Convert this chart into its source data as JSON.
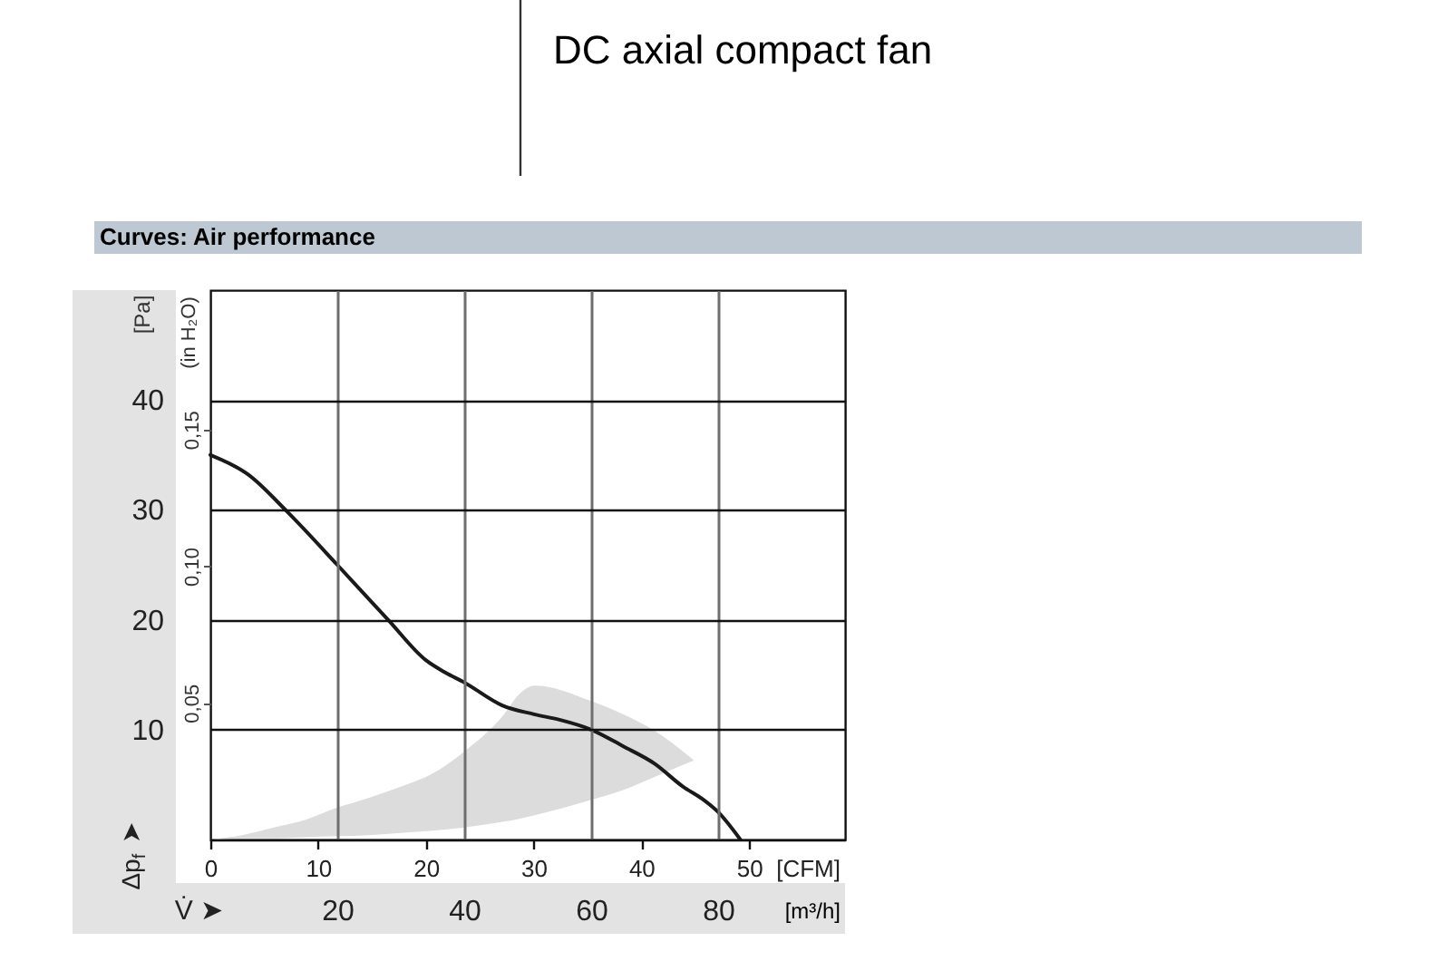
{
  "chart_data": {
    "type": "line",
    "title": "DC axial compact fan",
    "subtitle": "Curves: Air performance",
    "xlabel": "[m³/h]",
    "x2label": "[CFM]",
    "ylabel": "[Pa]",
    "y2label": "(in H₂O)",
    "annotations": [
      "Δp$_{f}$ ➤",
      "V̇ ➤"
    ],
    "xlim": [
      0,
      100
    ],
    "xticks": [
      20,
      40,
      60,
      80
    ],
    "x2lim": [
      0,
      58.9
    ],
    "x2ticks": [
      0,
      10,
      20,
      30,
      40,
      50
    ],
    "ylim": [
      0,
      50
    ],
    "yticks": [
      10,
      20,
      30,
      40
    ],
    "y2lim": [
      0,
      0.201
    ],
    "y2ticks": [
      {
        "value": 0.05,
        "label": "0,05"
      },
      {
        "value": 0.1,
        "label": "0,10"
      },
      {
        "value": 0.15,
        "label": "0,15"
      }
    ],
    "grid": true,
    "line_style": "solid",
    "series": [
      {
        "color": "#dcdcdc",
        "x": [
          0,
          5,
          10,
          15,
          20,
          25,
          30,
          35,
          40,
          46,
          48.8,
          51.1,
          60,
          65,
          70,
          76.2
        ],
        "values": [
          null,
          null,
          null,
          null,
          null,
          null,
          null,
          null,
          null,
          null,
          null,
          null,
          null,
          null,
          null,
          null
        ],
        "upper": [
          0,
          0.4,
          1.1,
          1.8,
          2.9,
          3.8,
          4.8,
          6.0,
          8.0,
          11.2,
          13.3,
          14.0,
          12.6,
          11.4,
          9.9,
          7.2
        ],
        "lower": [
          0,
          0.1,
          0.1,
          0.2,
          0.3,
          0.4,
          0.6,
          0.8,
          1.1,
          1.6,
          1.9,
          2.2,
          3.6,
          4.5,
          5.7,
          7.2
        ]
      },
      {
        "color": "#1a1a1a",
        "x": [
          0,
          6,
          12,
          20,
          24,
          28,
          34,
          37,
          40,
          46,
          51,
          55,
          60,
          65,
          70,
          74.5,
          77.5,
          80,
          83.5
        ],
        "values": [
          35.0,
          33.2,
          29.9,
          25.0,
          22.5,
          20.0,
          16.3,
          15.2,
          14.3,
          12.2,
          11.4,
          10.9,
          10.0,
          8.5,
          6.9,
          4.8,
          3.7,
          2.5,
          0
        ]
      }
    ]
  }
}
